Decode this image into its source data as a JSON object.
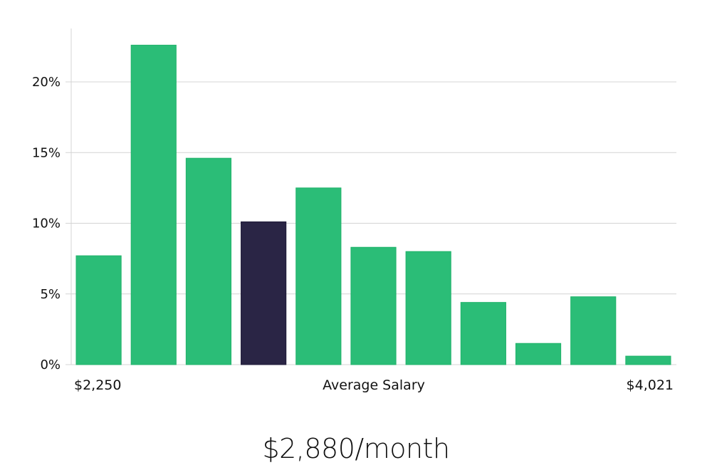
{
  "chart_data": {
    "type": "bar",
    "xlabel": "Average Salary",
    "x_min_label": "$2,250",
    "x_max_label": "$4,021",
    "ylim": [
      0,
      0.2375
    ],
    "y_ticks": [
      {
        "value": 0,
        "label": "0%"
      },
      {
        "value": 0.05,
        "label": "5%"
      },
      {
        "value": 0.1,
        "label": "10%"
      },
      {
        "value": 0.15,
        "label": "15%"
      },
      {
        "value": 0.2,
        "label": "20%"
      }
    ],
    "values": [
      0.077,
      0.226,
      0.146,
      0.101,
      0.125,
      0.083,
      0.08,
      0.044,
      0.015,
      0.048,
      0.006
    ],
    "highlight_index": 3,
    "grid": true
  },
  "summary": {
    "value_text": "$2,880/month"
  },
  "colors": {
    "bar": "#2bbd77",
    "bar_edge": "#21b36b",
    "highlight": "#2a2545",
    "highlight_edge": "#1e1a38"
  }
}
